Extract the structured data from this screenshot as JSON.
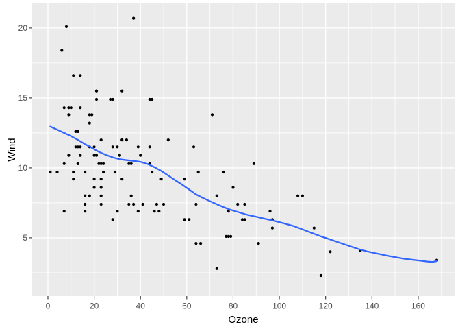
{
  "chart_data": {
    "type": "scatter",
    "title": "",
    "xlabel": "Ozone",
    "ylabel": "Wind",
    "legend_position": "none",
    "grid": true,
    "xlim": [
      -6.8,
      175.7
    ],
    "ylim": [
      0.83,
      21.76
    ],
    "x_ticks": [
      0,
      20,
      40,
      60,
      80,
      100,
      120,
      140,
      160
    ],
    "y_ticks": [
      5,
      10,
      15,
      20
    ],
    "x_minor": [
      10,
      30,
      50,
      70,
      90,
      110,
      130,
      150,
      170
    ],
    "y_minor": [
      2.5,
      7.5,
      12.5,
      17.5
    ],
    "series": [
      {
        "name": "observations",
        "type": "points",
        "x_field": "Ozone",
        "y_field": "Wind",
        "points": [
          [
            41,
            7.4
          ],
          [
            36,
            8.0
          ],
          [
            12,
            12.6
          ],
          [
            18,
            11.5
          ],
          [
            28,
            14.9
          ],
          [
            23,
            8.6
          ],
          [
            19,
            13.8
          ],
          [
            8,
            20.1
          ],
          [
            7,
            6.9
          ],
          [
            16,
            9.7
          ],
          [
            11,
            9.2
          ],
          [
            14,
            10.9
          ],
          [
            18,
            13.2
          ],
          [
            14,
            11.5
          ],
          [
            34,
            12.0
          ],
          [
            6,
            18.4
          ],
          [
            30,
            11.5
          ],
          [
            11,
            9.7
          ],
          [
            1,
            9.7
          ],
          [
            11,
            16.6
          ],
          [
            4,
            9.7
          ],
          [
            32,
            12.0
          ],
          [
            23,
            12.0
          ],
          [
            45,
            14.9
          ],
          [
            115,
            5.7
          ],
          [
            37,
            7.4
          ],
          [
            29,
            9.7
          ],
          [
            71,
            13.8
          ],
          [
            39,
            11.5
          ],
          [
            23,
            8.0
          ],
          [
            21,
            14.9
          ],
          [
            37,
            20.7
          ],
          [
            20,
            9.2
          ],
          [
            12,
            11.5
          ],
          [
            13,
            10.3
          ],
          [
            135,
            4.1
          ],
          [
            49,
            9.2
          ],
          [
            32,
            9.2
          ],
          [
            64,
            4.6
          ],
          [
            40,
            10.9
          ],
          [
            77,
            5.1
          ],
          [
            97,
            6.3
          ],
          [
            97,
            5.7
          ],
          [
            85,
            7.4
          ],
          [
            10,
            14.3
          ],
          [
            27,
            14.9
          ],
          [
            7,
            14.3
          ],
          [
            48,
            6.9
          ],
          [
            35,
            10.3
          ],
          [
            61,
            6.3
          ],
          [
            79,
            5.1
          ],
          [
            63,
            11.5
          ],
          [
            16,
            6.9
          ],
          [
            80,
            8.6
          ],
          [
            108,
            8.0
          ],
          [
            20,
            8.6
          ],
          [
            52,
            12.0
          ],
          [
            82,
            7.4
          ],
          [
            50,
            7.4
          ],
          [
            64,
            7.4
          ],
          [
            59,
            9.2
          ],
          [
            39,
            6.9
          ],
          [
            9,
            13.8
          ],
          [
            16,
            7.4
          ],
          [
            78,
            6.9
          ],
          [
            35,
            7.4
          ],
          [
            66,
            4.6
          ],
          [
            122,
            4.0
          ],
          [
            89,
            10.3
          ],
          [
            110,
            8.0
          ],
          [
            44,
            11.5
          ],
          [
            28,
            11.5
          ],
          [
            65,
            9.7
          ],
          [
            22,
            10.3
          ],
          [
            59,
            6.3
          ],
          [
            23,
            7.4
          ],
          [
            31,
            10.9
          ],
          [
            44,
            10.3
          ],
          [
            21,
            15.5
          ],
          [
            9,
            14.3
          ],
          [
            45,
            9.7
          ],
          [
            168,
            3.4
          ],
          [
            73,
            8.0
          ],
          [
            76,
            9.7
          ],
          [
            118,
            2.3
          ],
          [
            84,
            6.3
          ],
          [
            85,
            6.3
          ],
          [
            96,
            6.9
          ],
          [
            78,
            5.1
          ],
          [
            73,
            2.8
          ],
          [
            91,
            4.6
          ],
          [
            47,
            7.4
          ],
          [
            32,
            15.5
          ],
          [
            20,
            10.9
          ],
          [
            23,
            10.3
          ],
          [
            21,
            10.9
          ],
          [
            24,
            9.7
          ],
          [
            44,
            14.9
          ],
          [
            21,
            15.5
          ],
          [
            28,
            6.3
          ],
          [
            9,
            10.9
          ],
          [
            13,
            11.5
          ],
          [
            46,
            6.9
          ],
          [
            18,
            13.8
          ],
          [
            13,
            10.3
          ],
          [
            24,
            10.3
          ],
          [
            16,
            8.0
          ],
          [
            13,
            12.6
          ],
          [
            23,
            9.2
          ],
          [
            36,
            10.3
          ],
          [
            7,
            10.3
          ],
          [
            14,
            16.6
          ],
          [
            30,
            6.9
          ],
          [
            14,
            14.3
          ],
          [
            18,
            8.0
          ],
          [
            20,
            11.5
          ]
        ]
      },
      {
        "name": "loess-smooth",
        "type": "line",
        "points": [
          [
            1,
            12.95
          ],
          [
            4,
            12.73
          ],
          [
            7,
            12.5
          ],
          [
            10,
            12.27
          ],
          [
            13,
            12.0
          ],
          [
            16,
            11.7
          ],
          [
            19,
            11.42
          ],
          [
            22,
            11.15
          ],
          [
            25,
            10.93
          ],
          [
            28,
            10.75
          ],
          [
            31,
            10.62
          ],
          [
            34,
            10.55
          ],
          [
            37,
            10.5
          ],
          [
            40,
            10.43
          ],
          [
            43,
            10.28
          ],
          [
            46,
            10.05
          ],
          [
            49,
            9.78
          ],
          [
            52,
            9.45
          ],
          [
            55,
            9.12
          ],
          [
            58,
            8.8
          ],
          [
            61,
            8.45
          ],
          [
            64,
            8.1
          ],
          [
            67,
            7.85
          ],
          [
            70,
            7.62
          ],
          [
            74,
            7.32
          ],
          [
            78,
            7.05
          ],
          [
            82,
            6.85
          ],
          [
            86,
            6.65
          ],
          [
            90,
            6.5
          ],
          [
            94,
            6.35
          ],
          [
            98,
            6.2
          ],
          [
            102,
            6.03
          ],
          [
            106,
            5.85
          ],
          [
            110,
            5.6
          ],
          [
            114,
            5.35
          ],
          [
            118,
            5.1
          ],
          [
            122,
            4.88
          ],
          [
            126,
            4.65
          ],
          [
            130,
            4.43
          ],
          [
            134,
            4.2
          ],
          [
            138,
            4.02
          ],
          [
            142,
            3.88
          ],
          [
            146,
            3.74
          ],
          [
            150,
            3.62
          ],
          [
            154,
            3.5
          ],
          [
            158,
            3.42
          ],
          [
            161,
            3.36
          ],
          [
            164,
            3.3
          ],
          [
            166,
            3.27
          ],
          [
            168,
            3.33
          ]
        ]
      }
    ],
    "colors": {
      "panel_background": "#EBEBEB",
      "outer_background": "#FFFFFF",
      "grid_line": "#FFFFFF",
      "point": "#000000",
      "smooth_line": "#3366FF",
      "tick_label": "#4D4D4D",
      "axis_title": "#000000",
      "tick_mark": "#333333"
    }
  }
}
